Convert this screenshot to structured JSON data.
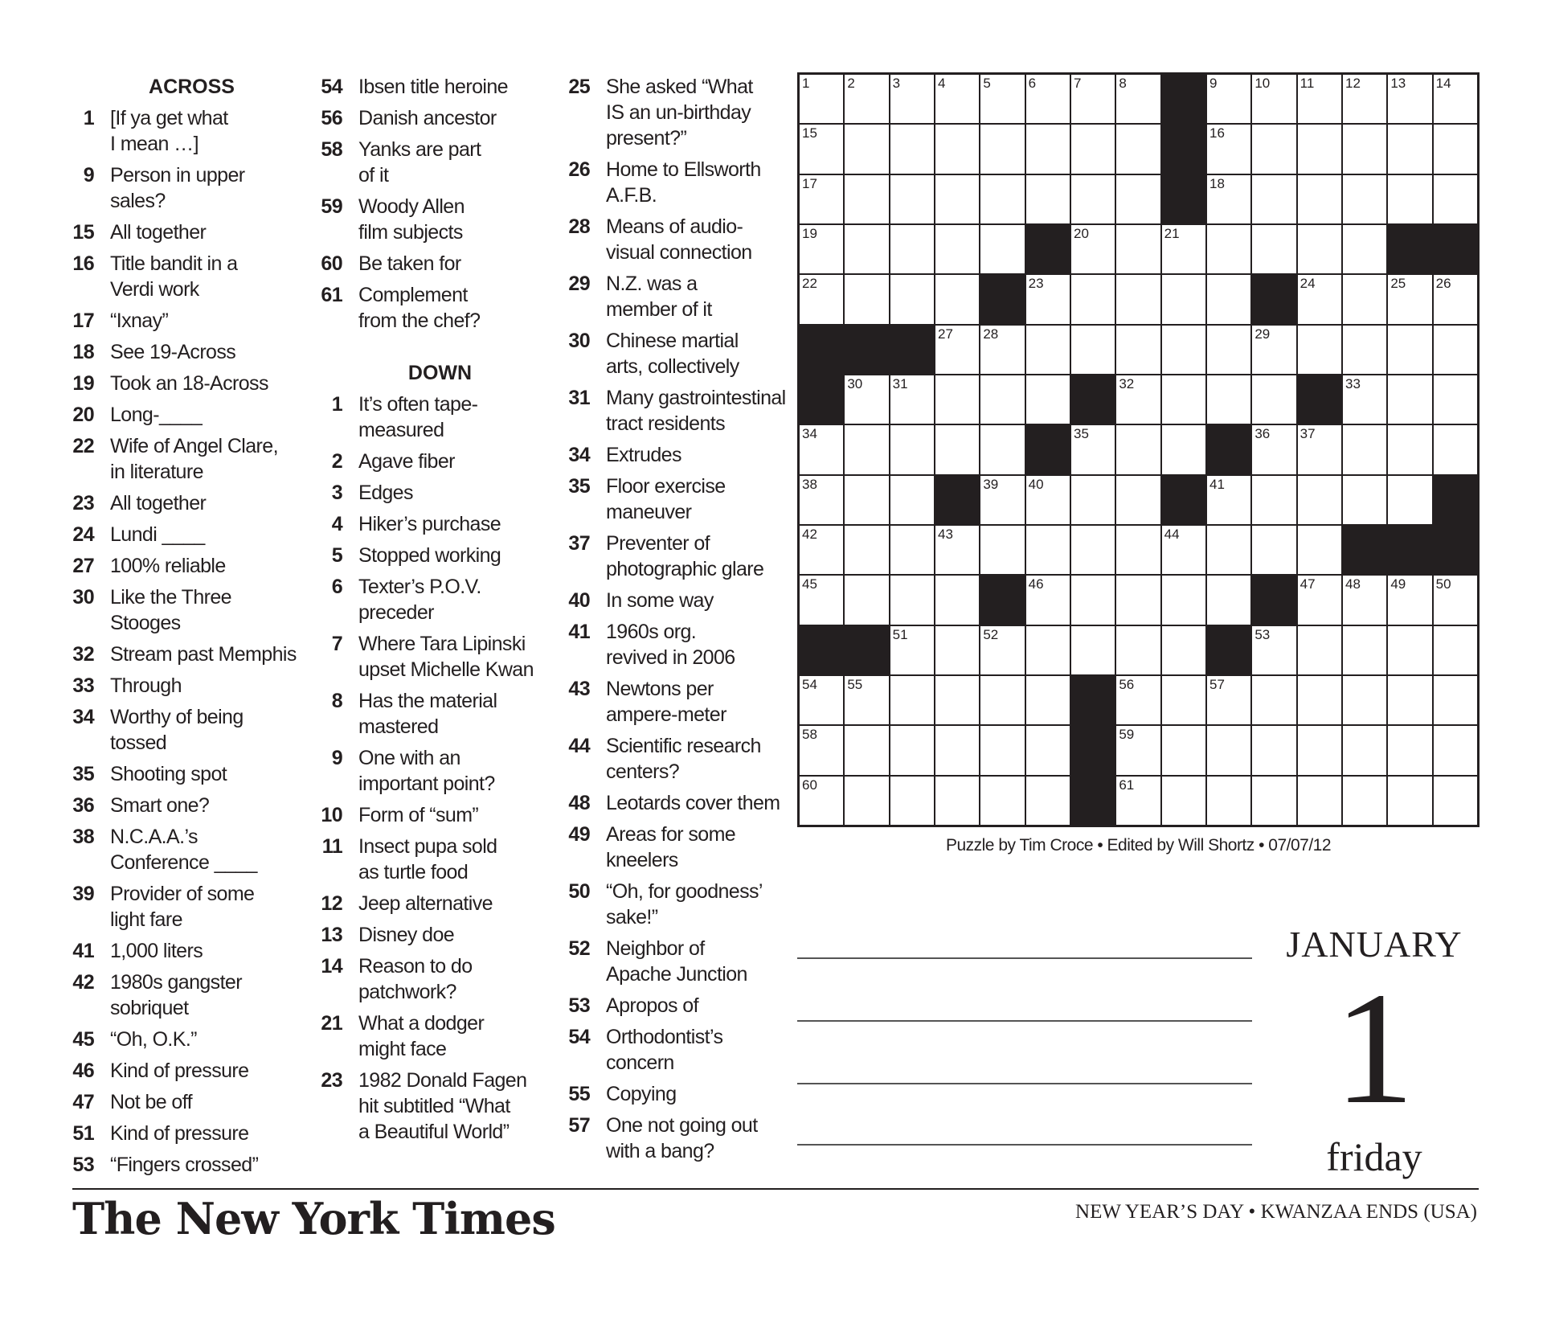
{
  "across_heading": "ACROSS",
  "down_heading": "DOWN",
  "across": [
    {
      "n": "1",
      "text": "[If ya get what\nI mean …]"
    },
    {
      "n": "9",
      "text": "Person in upper\nsales?"
    },
    {
      "n": "15",
      "text": "All together"
    },
    {
      "n": "16",
      "text": "Title bandit in a\nVerdi work"
    },
    {
      "n": "17",
      "text": "“Ixnay”"
    },
    {
      "n": "18",
      "text": "See 19-Across"
    },
    {
      "n": "19",
      "text": "Took an 18-Across"
    },
    {
      "n": "20",
      "text": "Long-____"
    },
    {
      "n": "22",
      "text": "Wife of Angel Clare,\nin literature"
    },
    {
      "n": "23",
      "text": "All together"
    },
    {
      "n": "24",
      "text": "Lundi ____"
    },
    {
      "n": "27",
      "text": "100% reliable"
    },
    {
      "n": "30",
      "text": "Like the Three\nStooges"
    },
    {
      "n": "32",
      "text": "Stream past Memphis"
    },
    {
      "n": "33",
      "text": "Through"
    },
    {
      "n": "34",
      "text": "Worthy of being\ntossed"
    },
    {
      "n": "35",
      "text": "Shooting spot"
    },
    {
      "n": "36",
      "text": "Smart one?"
    },
    {
      "n": "38",
      "text": "N.C.A.A.’s\nConference ____"
    },
    {
      "n": "39",
      "text": "Provider of some\nlight fare"
    },
    {
      "n": "41",
      "text": "1,000 liters"
    },
    {
      "n": "42",
      "text": "1980s gangster\nsobriquet"
    },
    {
      "n": "45",
      "text": "“Oh, O.K.”"
    },
    {
      "n": "46",
      "text": "Kind of pressure"
    },
    {
      "n": "47",
      "text": "Not be off"
    },
    {
      "n": "51",
      "text": "Kind of pressure"
    },
    {
      "n": "53",
      "text": "“Fingers crossed”"
    },
    {
      "n": "54",
      "text": "Ibsen title heroine"
    },
    {
      "n": "56",
      "text": "Danish ancestor"
    },
    {
      "n": "58",
      "text": "Yanks are part\nof it"
    },
    {
      "n": "59",
      "text": "Woody Allen\nfilm subjects"
    },
    {
      "n": "60",
      "text": "Be taken for"
    },
    {
      "n": "61",
      "text": "Complement\nfrom the chef?"
    }
  ],
  "down": [
    {
      "n": "1",
      "text": "It’s often tape-\nmeasured"
    },
    {
      "n": "2",
      "text": "Agave fiber"
    },
    {
      "n": "3",
      "text": "Edges"
    },
    {
      "n": "4",
      "text": "Hiker’s purchase"
    },
    {
      "n": "5",
      "text": "Stopped working"
    },
    {
      "n": "6",
      "text": "Texter’s P.O.V.\npreceder"
    },
    {
      "n": "7",
      "text": "Where Tara Lipinski\nupset Michelle Kwan"
    },
    {
      "n": "8",
      "text": "Has the material\nmastered"
    },
    {
      "n": "9",
      "text": "One with an\nimportant point?"
    },
    {
      "n": "10",
      "text": "Form of “sum”"
    },
    {
      "n": "11",
      "text": "Insect pupa sold\nas turtle food"
    },
    {
      "n": "12",
      "text": "Jeep alternative"
    },
    {
      "n": "13",
      "text": "Disney doe"
    },
    {
      "n": "14",
      "text": "Reason to do\npatchwork?"
    },
    {
      "n": "21",
      "text": "What a dodger\nmight face"
    },
    {
      "n": "23",
      "text": "1982 Donald Fagen\nhit subtitled “What\na Beautiful World”"
    },
    {
      "n": "25",
      "text": "She asked “What\nIS an un-birthday\npresent?”"
    },
    {
      "n": "26",
      "text": "Home to Ellsworth\nA.F.B."
    },
    {
      "n": "28",
      "text": "Means of audio-\nvisual connection"
    },
    {
      "n": "29",
      "text": "N.Z. was a\nmember of it"
    },
    {
      "n": "30",
      "text": "Chinese martial\narts, collectively"
    },
    {
      "n": "31",
      "text": "Many gastrointestinal\ntract residents"
    },
    {
      "n": "34",
      "text": "Extrudes"
    },
    {
      "n": "35",
      "text": "Floor exercise\nmaneuver"
    },
    {
      "n": "37",
      "text": "Preventer of\nphotographic glare"
    },
    {
      "n": "40",
      "text": "In some way"
    },
    {
      "n": "41",
      "text": "1960s org.\nrevived in 2006"
    },
    {
      "n": "43",
      "text": "Newtons per\nampere-meter"
    },
    {
      "n": "44",
      "text": "Scientific research\ncenters?"
    },
    {
      "n": "48",
      "text": "Leotards cover them"
    },
    {
      "n": "49",
      "text": "Areas for some\nkneelers"
    },
    {
      "n": "50",
      "text": "“Oh, for goodness’\nsake!”"
    },
    {
      "n": "52",
      "text": "Neighbor of\nApache Junction"
    },
    {
      "n": "53",
      "text": "Apropos of"
    },
    {
      "n": "54",
      "text": "Orthodontist’s\nconcern"
    },
    {
      "n": "55",
      "text": "Copying"
    },
    {
      "n": "57",
      "text": "One not going out\nwith a bang?"
    }
  ],
  "grid": {
    "size": 15,
    "rows": [
      "........#......",
      "........#......",
      "........#......",
      ".....#.......##",
      "....#.....#....",
      "###............",
      "#.....#....#...",
      ".....#...#.....",
      "...#....#.....#",
      "............###",
      "....#.....#....",
      "##.......#.....",
      "......#........",
      "......#........",
      "......#........"
    ]
  },
  "credit": "Puzzle by Tim Croce • Edited by Will Shortz • 07/07/12",
  "calendar": {
    "month": "JANUARY",
    "day": "1",
    "weekday": "friday",
    "holiday": "NEW YEAR’S DAY • KWANZAA ENDS (USA)"
  },
  "logo": "The New York Times"
}
